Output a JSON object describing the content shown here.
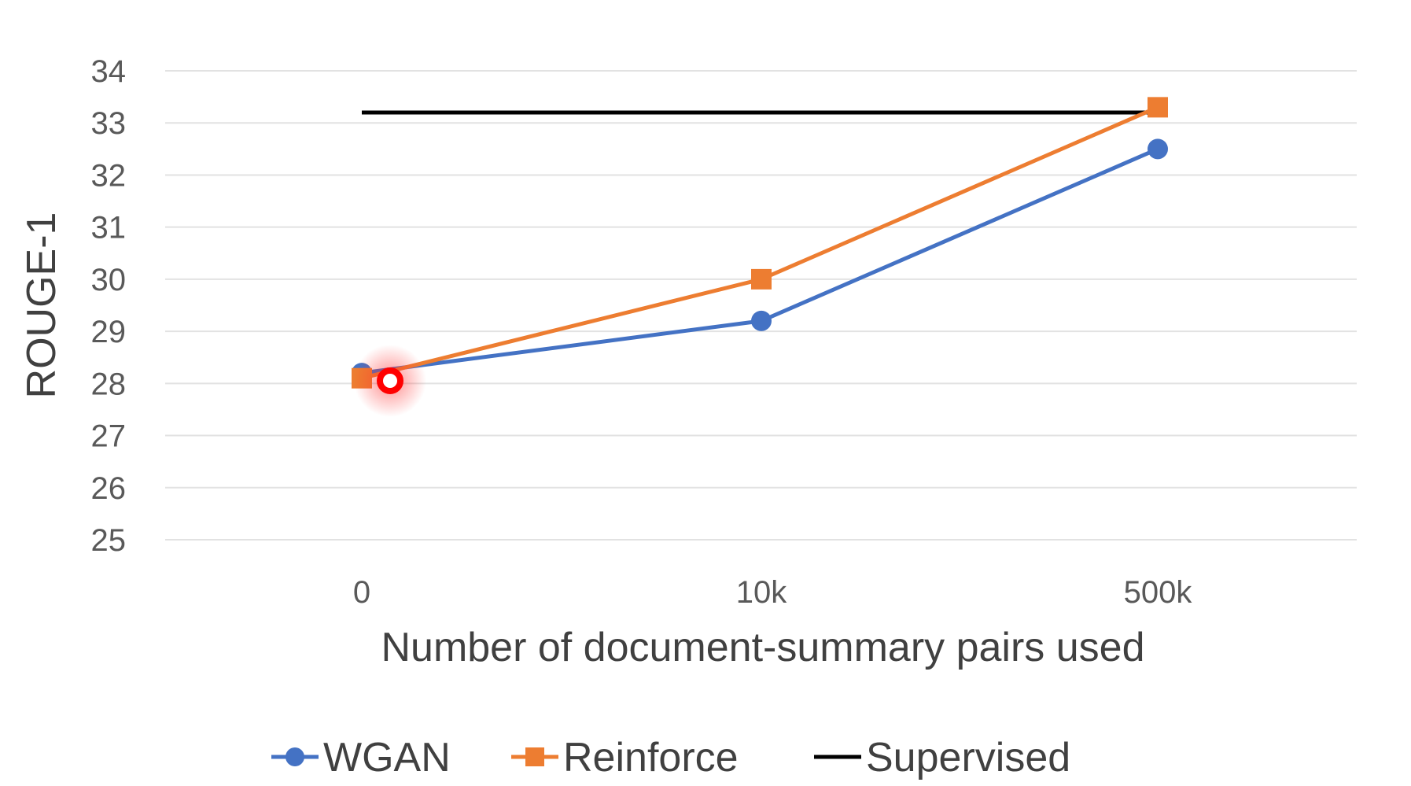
{
  "chart_data": {
    "type": "line",
    "title": "",
    "xlabel": "Number of document-summary pairs used",
    "ylabel": "ROUGE-1",
    "categories": [
      "0",
      "10k",
      "500k"
    ],
    "ylim": [
      25,
      34
    ],
    "yticks": [
      25,
      26,
      27,
      28,
      29,
      30,
      31,
      32,
      33,
      34
    ],
    "grid": true,
    "legend": "bottom",
    "series": [
      {
        "name": "WGAN",
        "values": [
          28.2,
          29.2,
          32.5
        ],
        "color": "#4472c4",
        "marker": "circle"
      },
      {
        "name": "Reinforce",
        "values": [
          28.1,
          30.0,
          33.3
        ],
        "color": "#ed7d31",
        "marker": "square"
      },
      {
        "name": "Supervised",
        "values": [
          33.2,
          33.2,
          33.2
        ],
        "color": "#000000",
        "marker": "none"
      }
    ],
    "cursor_marker": {
      "category": "0",
      "value": 28.05,
      "color": "#ff0000"
    }
  }
}
